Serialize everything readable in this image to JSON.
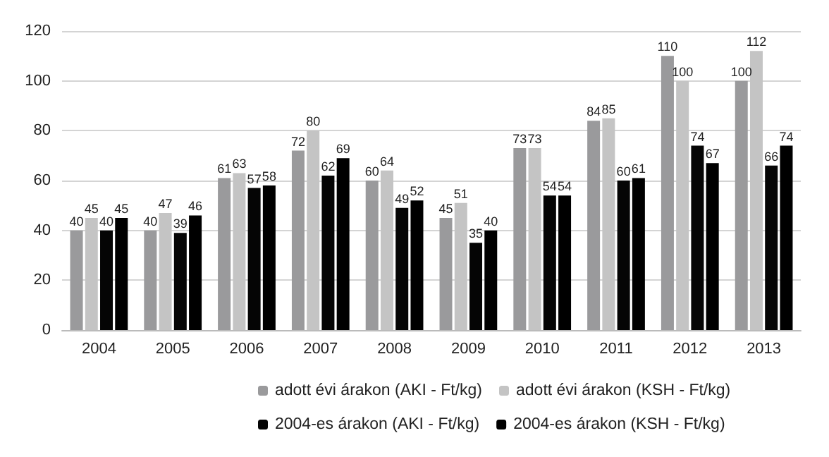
{
  "chart_data": {
    "type": "bar",
    "categories": [
      "2004",
      "2005",
      "2006",
      "2007",
      "2008",
      "2009",
      "2010",
      "2011",
      "2012",
      "2013"
    ],
    "series": [
      {
        "name": "adott évi árakon (AKI - Ft/kg)",
        "color": "#9a9a9c",
        "values": [
          40,
          40,
          61,
          72,
          60,
          45,
          73,
          84,
          110,
          100
        ]
      },
      {
        "name": "adott évi árakon (KSH - Ft/kg)",
        "color": "#c4c4c4",
        "values": [
          45,
          47,
          63,
          80,
          64,
          51,
          73,
          85,
          100,
          112
        ]
      },
      {
        "name": "2004-es árakon (AKI - Ft/kg)",
        "color": "#050505",
        "values": [
          40,
          39,
          57,
          62,
          49,
          35,
          54,
          60,
          74,
          66
        ]
      },
      {
        "name": "2004-es árakon (KSH - Ft/kg)",
        "color": "#000000",
        "values": [
          45,
          46,
          58,
          69,
          52,
          40,
          54,
          61,
          67,
          74
        ]
      }
    ],
    "ylim": [
      0,
      120
    ],
    "yticks": [
      0,
      20,
      40,
      60,
      80,
      100,
      120
    ],
    "grid": "y",
    "legend": "bottom",
    "data_labels": true
  }
}
